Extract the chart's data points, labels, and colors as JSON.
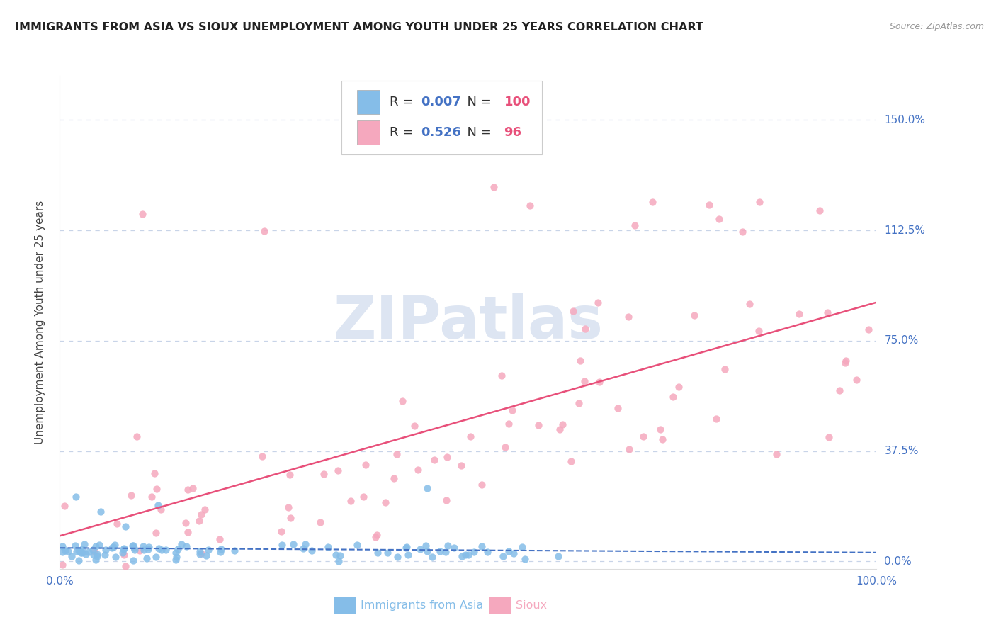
{
  "title": "IMMIGRANTS FROM ASIA VS SIOUX UNEMPLOYMENT AMONG YOUTH UNDER 25 YEARS CORRELATION CHART",
  "source": "Source: ZipAtlas.com",
  "ylabel": "Unemployment Among Youth under 25 years",
  "series1_label": "Immigrants from Asia",
  "series2_label": "Sioux",
  "xlim": [
    0.0,
    1.0
  ],
  "ylim": [
    -0.025,
    1.65
  ],
  "yticks": [
    0.0,
    0.375,
    0.75,
    1.125,
    1.5
  ],
  "ytick_labels": [
    "0.0%",
    "37.5%",
    "75.0%",
    "112.5%",
    "150.0%"
  ],
  "xtick_labels": [
    "0.0%",
    "100.0%"
  ],
  "r1": 0.007,
  "n1": 100,
  "r2": 0.526,
  "n2": 96,
  "color1": "#85bde8",
  "color2": "#f5a8be",
  "line1_color": "#4472c4",
  "line2_color": "#e8507a",
  "watermark_text": "ZIPatlas",
  "watermark_color": "#dde5f2",
  "background_color": "#ffffff",
  "grid_color": "#c8d4e8",
  "title_color": "#222222",
  "axis_tick_color": "#4472c4",
  "legend_value_color": "#4472c4",
  "legend_n_color": "#e8507a",
  "source_color": "#999999"
}
